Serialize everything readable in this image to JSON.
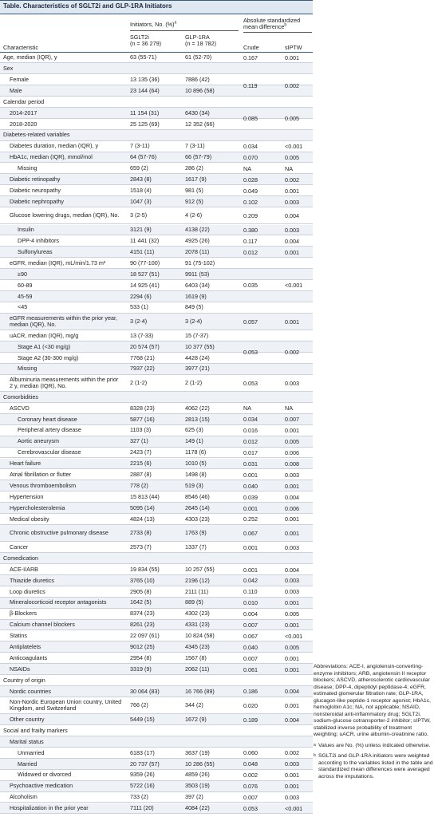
{
  "title": "Table. Characteristics of SGLT2i and GLP-1RA Initiators",
  "header": {
    "initiators": "Initiators, No. (%)",
    "initiators_note": "a",
    "smd": "Absolute standardized mean difference",
    "smd_note": "b",
    "characteristic": "Characteristic",
    "sglt2i": "SGLT2i",
    "sglt2i_n": "(n = 36 279)",
    "glp1ra": "GLP-1RA",
    "glp1ra_n": "(n = 18 782)",
    "crude": "Crude",
    "siptw": "sIPTW"
  },
  "table": {
    "rows": [
      {
        "label": "Age, median (IQR), y",
        "sglt2i": "63 (55-71)",
        "glp1ra": "61 (52-70)",
        "crude": "0.167",
        "siptw": "0.001"
      },
      {
        "label": "Sex"
      },
      {
        "label": "Female",
        "sglt2i": "13 135 (36)",
        "glp1ra": "7886 (42)",
        "crude": "0.119",
        "siptw": "0.002"
      },
      {
        "label": "Male",
        "sglt2i": "23 144 (64)",
        "glp1ra": "10 896 (58)"
      },
      {
        "label": "Calendar period"
      },
      {
        "label": "2014-2017",
        "sglt2i": "11 154 (31)",
        "glp1ra": "6430 (34)",
        "crude": "0.085",
        "siptw": "0.005"
      },
      {
        "label": "2018-2020",
        "sglt2i": "25 125 (69)",
        "glp1ra": "12 352 (66)"
      },
      {
        "label": "Diabetes-related variables"
      },
      {
        "label": "Diabetes duration, median (IQR), y",
        "sglt2i": "7 (3-11)",
        "glp1ra": "7 (3-11)",
        "crude": "0.034",
        "siptw": "<0.001"
      },
      {
        "label": "HbA1c, median (IQR), mmol/mol",
        "sglt2i": "64 (57-76)",
        "glp1ra": "66 (57-79)",
        "crude": "0.070",
        "siptw": "0.005"
      },
      {
        "label": "Missing",
        "sglt2i": "659 (2)",
        "glp1ra": "286 (2)",
        "crude": "NA",
        "siptw": "NA"
      },
      {
        "label": "Diabetic retinopathy",
        "sglt2i": "2843 (8)",
        "glp1ra": "1617 (9)",
        "crude": "0.028",
        "siptw": "0.002"
      },
      {
        "label": "Diabetic neuropathy",
        "sglt2i": "1518 (4)",
        "glp1ra": "981 (5)",
        "crude": "0.049",
        "siptw": "0.001"
      },
      {
        "label": "Diabetic nephropathy",
        "sglt2i": "1047 (3)",
        "glp1ra": "912 (5)",
        "crude": "0.102",
        "siptw": "0.003"
      },
      {
        "label": "Glucose lowering drugs, median (IQR), No.",
        "sglt2i": "3 (2-5)",
        "glp1ra": "4 (2-6)",
        "crude": "0.209",
        "siptw": "0.004"
      },
      {
        "label": "Insulin",
        "sglt2i": "3121 (9)",
        "glp1ra": "4138 (22)",
        "crude": "0.380",
        "siptw": "0.003"
      },
      {
        "label": "DPP-4 inhibitors",
        "sglt2i": "11 441 (32)",
        "glp1ra": "4925 (26)",
        "crude": "0.117",
        "siptw": "0.004"
      },
      {
        "label": "Sulfonylureas",
        "sglt2i": "4151 (11)",
        "glp1ra": "2078 (11)",
        "crude": "0.012",
        "siptw": "0.001"
      },
      {
        "label": "eGFR, median (IQR), mL/min/1.73 m²",
        "sglt2i": "90 (77-100)",
        "glp1ra": "91 (75-102)",
        "crude": "0.035",
        "siptw": "<0.001"
      },
      {
        "label": "≥90",
        "sglt2i": "18 527 (51)",
        "glp1ra": "9911 (53)"
      },
      {
        "label": "60-89",
        "sglt2i": "14 925 (41)",
        "glp1ra": "6403 (34)"
      },
      {
        "label": "45-59",
        "sglt2i": "2294 (6)",
        "glp1ra": "1619 (9)"
      },
      {
        "label": "<45",
        "sglt2i": "533 (1)",
        "glp1ra": "849 (5)"
      },
      {
        "label": "eGFR measurements within the prior year, median (IQR), No.",
        "sglt2i": "3 (2-4)",
        "glp1ra": "3 (2-4)",
        "crude": "0.057",
        "siptw": "0.001"
      },
      {
        "label": "uACR, median (IQR), mg/g",
        "sglt2i": "13 (7-33)",
        "glp1ra": "15 (7-37)",
        "crude": "0.053",
        "siptw": "0.002"
      },
      {
        "label": "Stage A1 (<30 mg/g)",
        "sglt2i": "20 574 (57)",
        "glp1ra": "10 377 (55)"
      },
      {
        "label": "Stage A2 (30-300 mg/g)",
        "sglt2i": "7768 (21)",
        "glp1ra": "4428 (24)"
      },
      {
        "label": "Missing",
        "sglt2i": "7937 (22)",
        "glp1ra": "3977 (21)"
      },
      {
        "label": "Albuminuria measurements within the prior 2 y, median (IQR), No.",
        "sglt2i": "2 (1-2)",
        "glp1ra": "2 (1-2)",
        "crude": "0.053",
        "siptw": "0.003"
      },
      {
        "label": "Comorbidities"
      },
      {
        "label": "ASCVD",
        "sglt2i": "8328 (23)",
        "glp1ra": "4062 (22)",
        "crude": "NA",
        "siptw": "NA"
      },
      {
        "label": "Coronary heart disease",
        "sglt2i": "5877 (16)",
        "glp1ra": "2813 (15)",
        "crude": "0.034",
        "siptw": "0.007"
      },
      {
        "label": "Peripheral artery disease",
        "sglt2i": "1103 (3)",
        "glp1ra": "625 (3)",
        "crude": "0.016",
        "siptw": "0.001"
      },
      {
        "label": "Aortic aneurysm",
        "sglt2i": "327 (1)",
        "glp1ra": "149 (1)",
        "crude": "0.012",
        "siptw": "0.005"
      },
      {
        "label": "Cerebrovascular disease",
        "sglt2i": "2423 (7)",
        "glp1ra": "1178 (6)",
        "crude": "0.017",
        "siptw": "0.006"
      },
      {
        "label": "Heart failure",
        "sglt2i": "2215 (6)",
        "glp1ra": "1010 (5)",
        "crude": "0.031",
        "siptw": "0.008"
      },
      {
        "label": "Atrial fibrillation or flutter",
        "sglt2i": "2887 (8)",
        "glp1ra": "1498 (8)",
        "crude": "0.001",
        "siptw": "0.003"
      },
      {
        "label": "Venous thromboembolism",
        "sglt2i": "778 (2)",
        "glp1ra": "519 (3)",
        "crude": "0.040",
        "siptw": "0.001"
      },
      {
        "label": "Hypertension",
        "sglt2i": "15 813 (44)",
        "glp1ra": "8546 (46)",
        "crude": "0.039",
        "siptw": "0.004"
      },
      {
        "label": "Hypercholesterolemia",
        "sglt2i": "5095 (14)",
        "glp1ra": "2645 (14)",
        "crude": "0.001",
        "siptw": "0.006"
      },
      {
        "label": "Medical obesity",
        "sglt2i": "4824 (13)",
        "glp1ra": "4303 (23)",
        "crude": "0.252",
        "siptw": "0.001"
      },
      {
        "label": "Chronic obstructive pulmonary disease",
        "sglt2i": "2733 (8)",
        "glp1ra": "1763 (9)",
        "crude": "0.067",
        "siptw": "0.001"
      },
      {
        "label": "Cancer",
        "sglt2i": "2573 (7)",
        "glp1ra": "1337 (7)",
        "crude": "0.001",
        "siptw": "0.003"
      },
      {
        "label": "Comedication"
      },
      {
        "label": "ACE-I/ARB",
        "sglt2i": "19 834 (55)",
        "glp1ra": "10 257 (55)",
        "crude": "0.001",
        "siptw": "0.004"
      },
      {
        "label": "Thiazide diuretics",
        "sglt2i": "3765 (10)",
        "glp1ra": "2196 (12)",
        "crude": "0.042",
        "siptw": "0.003"
      },
      {
        "label": "Loop diuretics",
        "sglt2i": "2905 (8)",
        "glp1ra": "2111 (11)",
        "crude": "0.110",
        "siptw": "0.003"
      },
      {
        "label": "Mineralocorticoid receptor antagonists",
        "sglt2i": "1642 (5)",
        "glp1ra": "889 (5)",
        "crude": "0.010",
        "siptw": "0.001"
      },
      {
        "label": "β-Blockers",
        "sglt2i": "8374 (23)",
        "glp1ra": "4302 (23)",
        "crude": "0.004",
        "siptw": "0.005"
      },
      {
        "label": "Calcium channel blockers",
        "sglt2i": "8261 (23)",
        "glp1ra": "4331 (23)",
        "crude": "0.007",
        "siptw": "0.001"
      },
      {
        "label": "Statins",
        "sglt2i": "22 097 (61)",
        "glp1ra": "10 824 (58)",
        "crude": "0.067",
        "siptw": "<0.001"
      },
      {
        "label": "Antiplatelets",
        "sglt2i": "9012 (25)",
        "glp1ra": "4345 (23)",
        "crude": "0.040",
        "siptw": "0.005"
      },
      {
        "label": "Anticoagulants",
        "sglt2i": "2954 (8)",
        "glp1ra": "1567 (8)",
        "crude": "0.007",
        "siptw": "0.001"
      },
      {
        "label": "NSAIDs",
        "sglt2i": "3319 (9)",
        "glp1ra": "2062 (11)",
        "crude": "0.061",
        "siptw": "0.001"
      },
      {
        "label": "Country of origin"
      },
      {
        "label": "Nordic countries",
        "sglt2i": "30 064 (83)",
        "glp1ra": "16 766 (89)",
        "crude": "0.186",
        "siptw": "0.004"
      },
      {
        "label": "Non-Nordic European Union country, United Kingdom, and Switzerland",
        "sglt2i": "766 (2)",
        "glp1ra": "344 (2)",
        "crude": "0.020",
        "siptw": "0.001"
      },
      {
        "label": "Other country",
        "sglt2i": "5449 (15)",
        "glp1ra": "1672 (9)",
        "crude": "0.189",
        "siptw": "0.004"
      },
      {
        "label": "Social and frailty markers"
      },
      {
        "label": "Marital status"
      },
      {
        "label": "Unmarried",
        "sglt2i": "6183 (17)",
        "glp1ra": "3637 (19)",
        "crude": "0.060",
        "siptw": "0.002"
      },
      {
        "label": "Married",
        "sglt2i": "20 737 (57)",
        "glp1ra": "10 286 (55)",
        "crude": "0.048",
        "siptw": "0.003"
      },
      {
        "label": "Widowed or divorced",
        "sglt2i": "9359 (26)",
        "glp1ra": "4859 (26)",
        "crude": "0.002",
        "siptw": "0.001"
      },
      {
        "label": "Psychoactive medication",
        "sglt2i": "5722 (16)",
        "glp1ra": "3503 (19)",
        "crude": "0.076",
        "siptw": "0.001"
      },
      {
        "label": "Alcoholism",
        "sglt2i": "733 (2)",
        "glp1ra": "397 (2)",
        "crude": "0.007",
        "siptw": "0.003"
      },
      {
        "label": "Hospitalization in the prior year",
        "sglt2i": "7111 (20)",
        "glp1ra": "4084 (22)",
        "crude": "0.053",
        "siptw": "<0.001"
      }
    ]
  },
  "footnotes": {
    "abbreviations": "Abbreviations: ACE-I, angiotensin-converting-enzyme inhibitors; ARB, angiotensin II receptor blockers; ASCVD, atherosclerotic cardiovascular disease; DPP-4, dipeptidyl peptidase-4; eGFR, estimated glomerular filtration rate; GLP-1RA, glucagon-like peptide-1 receptor agonist; HbA1c, hemoglobin A1c; NA, not applicable; NSAID, nonsteroidal anti-inflammatory drug; SGLT2i, sodium-glucose cotransporter-2 inhibitor; sIPTW, stabilized inverse probability of treatment weighting; uACR, urine albumin-creatinine ratio.",
    "a_marker": "a",
    "a": "Values are No. (%) unless indicated otherwise.",
    "b_marker": "b",
    "b": "SGLT2i and GLP-1RA initiators were weighted according to the variables listed in the table and standardized mean differences were averaged across the imputations."
  }
}
